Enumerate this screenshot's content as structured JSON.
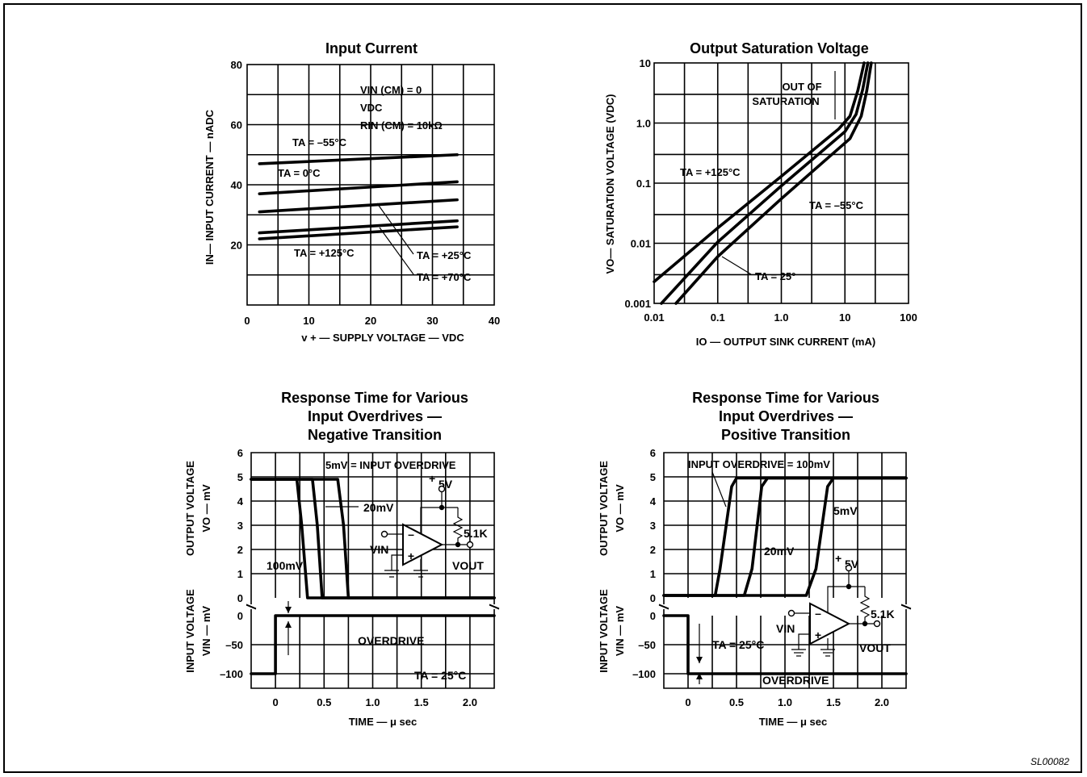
{
  "figure_id": "SL00082",
  "chart_data": [
    {
      "type": "line",
      "title": "Input Current",
      "xlabel": "v + — SUPPLY VOLTAGE — VDC",
      "ylabel": "IN— INPUT CURRENT — nADC",
      "xlim": [
        0,
        40
      ],
      "ylim": [
        0,
        80
      ],
      "x_ticks": [
        "0",
        "10",
        "20",
        "30",
        "40"
      ],
      "y_ticks": [
        "20",
        "40",
        "60",
        "80"
      ],
      "grid": true,
      "annotations": [
        "VIN (CM) = 0",
        "VDC",
        "RIN (CM) = 10kΩ"
      ],
      "series": [
        {
          "name": "TA = –55°C",
          "x": [
            2,
            34
          ],
          "y": [
            47,
            50
          ]
        },
        {
          "name": "TA = 0°C",
          "x": [
            2,
            34
          ],
          "y": [
            37,
            41
          ]
        },
        {
          "name": "TA = +25°C",
          "x": [
            2,
            34
          ],
          "y": [
            31,
            35
          ]
        },
        {
          "name": "TA = +70°C",
          "x": [
            2,
            34
          ],
          "y": [
            24,
            28
          ]
        },
        {
          "name": "TA = +125°C",
          "x": [
            2,
            34
          ],
          "y": [
            22,
            26
          ]
        }
      ]
    },
    {
      "type": "line",
      "title": "Output Saturation Voltage",
      "xlabel": "IO — OUTPUT SINK CURRENT (mA)",
      "ylabel": "VO— SATURATION VOLTAGE (VDC)",
      "log_x": true,
      "log_y": true,
      "xlim": [
        0.01,
        100
      ],
      "ylim": [
        0.001,
        10
      ],
      "x_ticks": [
        "0.01",
        "0.1",
        "1.0",
        "10",
        "100"
      ],
      "y_ticks": [
        "0.001",
        "0.01",
        "0.1",
        "1.0",
        "10"
      ],
      "grid": true,
      "annotations": [
        "OUT OF",
        "SATURATION"
      ],
      "series": [
        {
          "name": "TA = +125°C",
          "x": [
            0.01,
            0.1,
            1,
            8,
            12,
            16,
            20
          ],
          "y": [
            0.0023,
            0.018,
            0.13,
            0.8,
            1.3,
            3.5,
            10
          ]
        },
        {
          "name": "TA = 25°",
          "x": [
            0.013,
            0.1,
            1,
            10,
            15,
            19,
            23
          ],
          "y": [
            0.001,
            0.0105,
            0.09,
            0.72,
            1.4,
            3.6,
            10
          ]
        },
        {
          "name": "TA = –55°C",
          "x": [
            0.022,
            0.1,
            1,
            12,
            18,
            22,
            26
          ],
          "y": [
            0.001,
            0.006,
            0.055,
            0.55,
            1.3,
            3.4,
            10
          ]
        }
      ]
    },
    {
      "type": "line",
      "title": "Response Time for Various Input Overdrives — Negative Transition",
      "title_lines": [
        "Response Time for Various",
        "Input Overdrives —",
        "Negative Transition"
      ],
      "xlabel": "TIME — μ sec",
      "ylabel_upper": [
        "OUTPUT VOLTAGE",
        "VO — mV"
      ],
      "ylabel_lower": [
        "INPUT VOLTAGE",
        "VIN — mV"
      ],
      "x_ticks": [
        "0",
        "0.5",
        "1.0",
        "1.5",
        "2.0"
      ],
      "y_ticks_upper": [
        "6",
        "5",
        "4",
        "3",
        "2",
        "1",
        "0"
      ],
      "y_ticks_lower": [
        "0",
        "–50",
        "–100"
      ],
      "xlim": [
        -0.25,
        2.25
      ],
      "annotations": [
        "5mV = INPUT OVERDRIVE",
        "20mV",
        "100mV",
        "OVERDRIVE",
        "TA = 25°C",
        "VIN",
        "VOUT",
        "+",
        "5V",
        "5.1K"
      ],
      "series": [
        {
          "name": "100mV",
          "x": [
            -0.25,
            0.22,
            0.27,
            0.33,
            2.25
          ],
          "y": [
            4.9,
            4.9,
            3.0,
            0.0,
            0.0
          ]
        },
        {
          "name": "20mV",
          "x": [
            -0.25,
            0.38,
            0.43,
            0.48,
            2.25
          ],
          "y": [
            4.9,
            4.9,
            3.0,
            0.0,
            0.0
          ]
        },
        {
          "name": "5mV",
          "x": [
            -0.25,
            0.64,
            0.7,
            0.75,
            2.25
          ],
          "y": [
            4.9,
            4.9,
            3.0,
            0.0,
            0.0
          ]
        }
      ],
      "input": {
        "x": [
          -0.25,
          0,
          0,
          2.25
        ],
        "y": [
          -100,
          -100,
          0,
          0
        ]
      }
    },
    {
      "type": "line",
      "title": "Response Time for Various Input Overdrives — Positive Transition",
      "title_lines": [
        "Response Time for Various",
        "Input Overdrives —",
        "Positive Transition"
      ],
      "xlabel": "TIME — μ sec",
      "ylabel_upper": [
        "OUTPUT VOLTAGE",
        "VO — mV"
      ],
      "ylabel_lower": [
        "INPUT VOLTAGE",
        "VIN — mV"
      ],
      "x_ticks": [
        "0",
        "0.5",
        "1.0",
        "1.5",
        "2.0"
      ],
      "y_ticks_upper": [
        "6",
        "5",
        "4",
        "3",
        "2",
        "1",
        "0"
      ],
      "y_ticks_lower": [
        "0",
        "–50",
        "–100"
      ],
      "xlim": [
        -0.25,
        2.25
      ],
      "annotations": [
        "INPUT OVERDRIVE = 100mV",
        "20mV",
        "5mV",
        "OVERDRIVE",
        "TA = 25°C",
        "VIN",
        "VOUT",
        "+",
        "5V",
        "5.1K"
      ],
      "series": [
        {
          "name": "100mV",
          "x": [
            -0.25,
            0.28,
            0.33,
            0.45,
            0.5,
            2.25
          ],
          "y": [
            0.1,
            0.1,
            1.2,
            4.6,
            4.95,
            4.95
          ]
        },
        {
          "name": "20mV",
          "x": [
            -0.25,
            0.58,
            0.66,
            0.76,
            0.82,
            2.25
          ],
          "y": [
            0.1,
            0.1,
            1.2,
            4.6,
            4.95,
            4.95
          ]
        },
        {
          "name": "5mV",
          "x": [
            -0.25,
            1.22,
            1.32,
            1.44,
            1.5,
            2.25
          ],
          "y": [
            0.1,
            0.1,
            1.2,
            4.6,
            4.95,
            4.95
          ]
        }
      ],
      "input": {
        "x": [
          -0.25,
          0,
          0,
          2.25
        ],
        "y": [
          0,
          0,
          -100,
          -100
        ]
      }
    }
  ]
}
